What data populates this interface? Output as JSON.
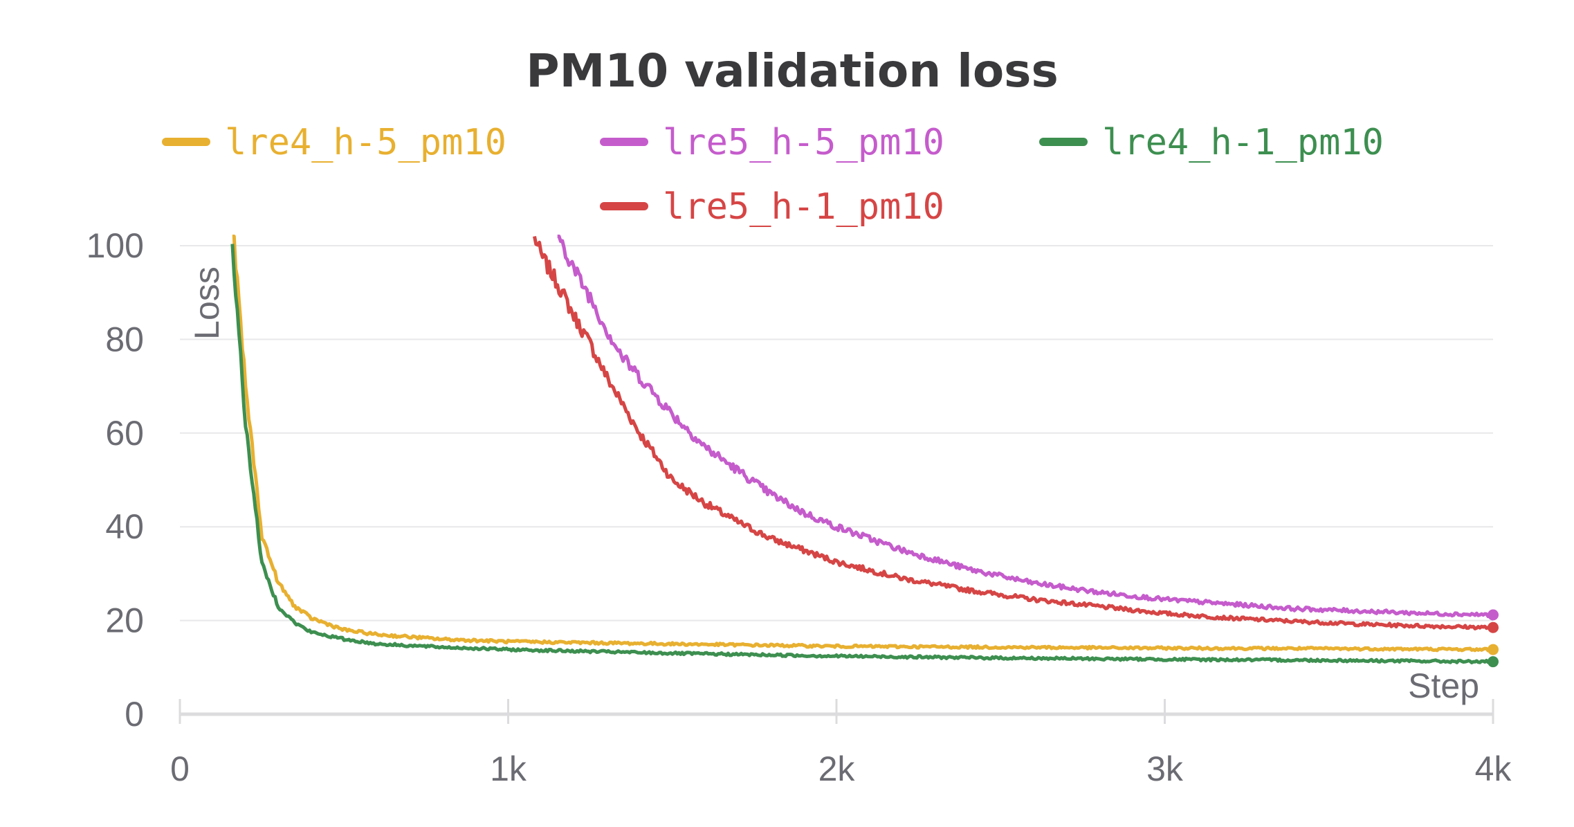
{
  "chart_data": {
    "type": "line",
    "title": "PM10 validation loss",
    "xlabel": "Step",
    "ylabel": "Loss",
    "xlim": [
      0,
      4000
    ],
    "ylim": [
      0,
      100
    ],
    "x_ticks": [
      {
        "value": 0,
        "label": "0"
      },
      {
        "value": 1000,
        "label": "1k"
      },
      {
        "value": 2000,
        "label": "2k"
      },
      {
        "value": 3000,
        "label": "3k"
      },
      {
        "value": 4000,
        "label": "4k"
      }
    ],
    "y_ticks": [
      {
        "value": 0,
        "label": "0"
      },
      {
        "value": 20,
        "label": "20"
      },
      {
        "value": 40,
        "label": "40"
      },
      {
        "value": 60,
        "label": "60"
      },
      {
        "value": 80,
        "label": "80"
      },
      {
        "value": 100,
        "label": "100"
      }
    ],
    "grid": true,
    "legend_position": "top",
    "series": [
      {
        "name": "lre4_h-5_pm10",
        "color": "#e8b030",
        "x": [
          160,
          200,
          250,
          300,
          350,
          400,
          500,
          600,
          800,
          1000,
          1500,
          2000,
          2500,
          3000,
          3500,
          4000
        ],
        "y": [
          105,
          70,
          38,
          28,
          23,
          20.5,
          18,
          17,
          16,
          15.5,
          15,
          14.5,
          14.3,
          14.1,
          14,
          13.8
        ]
      },
      {
        "name": "lre5_h-5_pm10",
        "color": "#c55ccc",
        "x": [
          1150,
          1200,
          1250,
          1300,
          1350,
          1400,
          1500,
          1600,
          1700,
          1800,
          1900,
          2000,
          2200,
          2400,
          2600,
          2800,
          3000,
          3200,
          3400,
          3600,
          3800,
          4000
        ],
        "y": [
          103,
          95,
          89,
          82,
          76,
          72,
          64,
          57,
          52,
          47,
          43,
          40,
          35,
          31,
          28,
          26,
          24.5,
          23.5,
          22.5,
          22,
          21.5,
          21.2
        ]
      },
      {
        "name": "lre4_h-1_pm10",
        "color": "#3d8f50",
        "x": [
          160,
          200,
          250,
          300,
          350,
          400,
          500,
          600,
          800,
          1000,
          1500,
          2000,
          2500,
          3000,
          3500,
          4000
        ],
        "y": [
          100,
          62,
          32,
          23,
          19.5,
          17.5,
          16,
          15,
          14.3,
          13.8,
          13,
          12.4,
          12,
          11.7,
          11.5,
          11.2
        ]
      },
      {
        "name": "lre5_h-1_pm10",
        "color": "#d64545",
        "x": [
          1080,
          1100,
          1150,
          1200,
          1250,
          1300,
          1350,
          1400,
          1450,
          1500,
          1600,
          1700,
          1800,
          1900,
          2000,
          2200,
          2400,
          2600,
          2800,
          3000,
          3200,
          3400,
          3600,
          3800,
          4000
        ],
        "y": [
          102,
          98,
          92,
          85,
          79,
          72,
          66,
          60,
          55,
          50,
          45,
          41,
          37.5,
          35,
          32.5,
          29,
          26.5,
          24.5,
          23,
          21.5,
          20.5,
          19.8,
          19.2,
          18.8,
          18.5
        ]
      }
    ]
  }
}
